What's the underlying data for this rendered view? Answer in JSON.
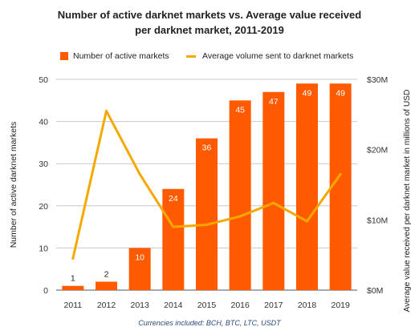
{
  "chart_data": {
    "type": "bar",
    "title_line1": "Number of active darknet markets vs. Average value received",
    "title_line2": "per darknet market, 2011-2019",
    "categories": [
      "2011",
      "2012",
      "2013",
      "2014",
      "2015",
      "2016",
      "2017",
      "2018",
      "2019"
    ],
    "series": [
      {
        "name": "Number of active markets",
        "type": "bar",
        "axis": "left",
        "color": "#ff5a00",
        "values": [
          1,
          2,
          10,
          24,
          36,
          45,
          47,
          49,
          49
        ]
      },
      {
        "name": "Average volume sent to darknet markets",
        "type": "line",
        "axis": "right",
        "color": "#f7a800",
        "values": [
          4.5,
          25.5,
          16.5,
          9,
          9.3,
          10.5,
          12.4,
          9.8,
          16.5
        ]
      }
    ],
    "ylabel_left": "Number of active darknet markets",
    "ylabel_right": "Average value received per darknet market in millions of USD",
    "ylim_left": [
      0,
      50
    ],
    "yticks_left": [
      "0",
      "10",
      "20",
      "30",
      "40",
      "50"
    ],
    "ylim_right": [
      0,
      30
    ],
    "yticks_right": [
      "$0M",
      "$10M",
      "$20M",
      "$30M"
    ],
    "grid": true,
    "legend_position": "top",
    "footnote": "Currencies included: BCH, BTC, LTC, USDT"
  }
}
